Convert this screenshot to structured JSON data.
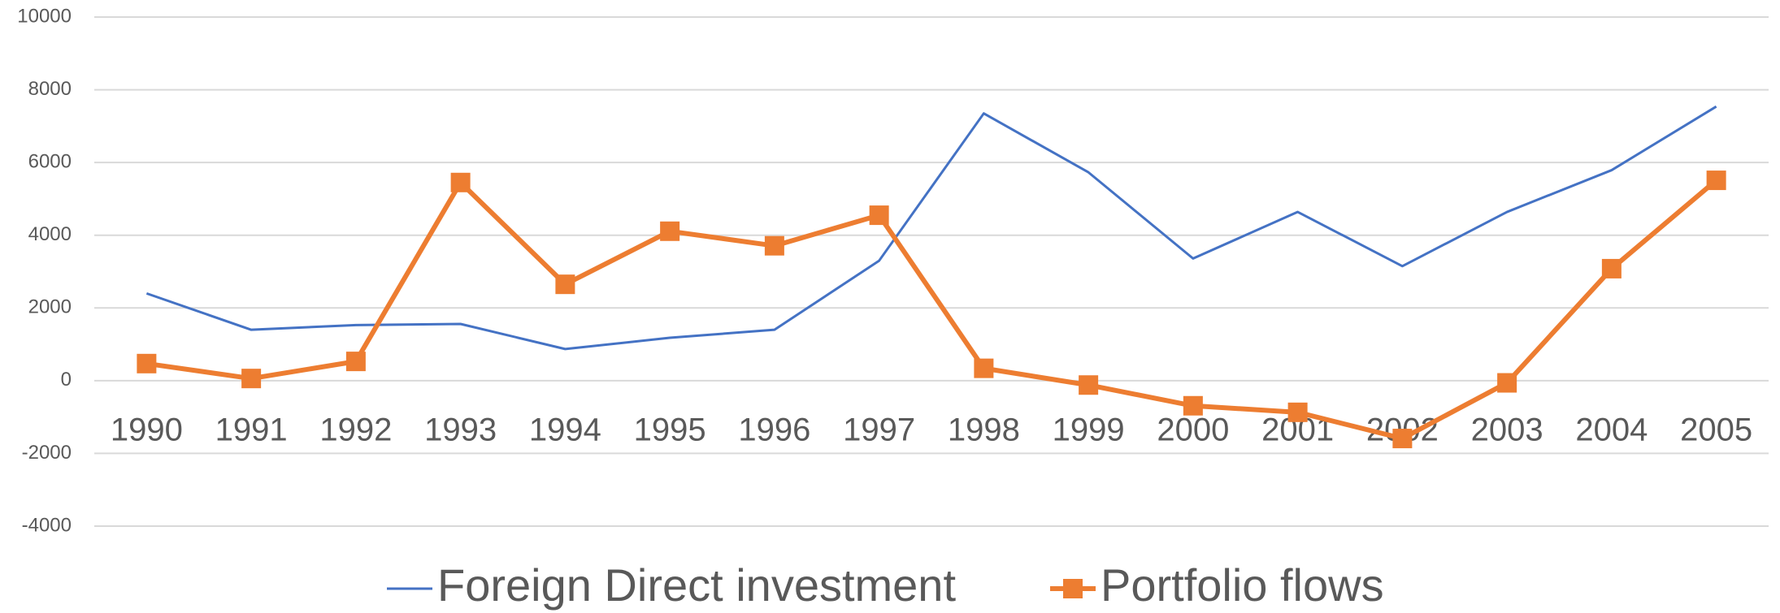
{
  "chart_data": {
    "type": "line",
    "categories": [
      "1990",
      "1991",
      "1992",
      "1993",
      "1994",
      "1995",
      "1996",
      "1997",
      "1998",
      "1999",
      "2000",
      "2001",
      "2002",
      "2003",
      "2004",
      "2005"
    ],
    "series": [
      {
        "name": "Foreign Direct investment",
        "color": "#4472c4",
        "marker": false,
        "values": [
          2400,
          1400,
          1530,
          1560,
          870,
          1180,
          1400,
          3300,
          7350,
          5730,
          3360,
          4640,
          3150,
          4640,
          5790,
          7540
        ]
      },
      {
        "name": "Portfolio flows",
        "color": "#ed7d31",
        "marker": true,
        "values": [
          470,
          60,
          530,
          5450,
          2650,
          4110,
          3710,
          4550,
          340,
          -120,
          -690,
          -870,
          -1590,
          -60,
          3080,
          5510
        ]
      }
    ],
    "ylim": [
      -4000,
      10000
    ],
    "yticks": [
      -4000,
      -2000,
      0,
      2000,
      4000,
      6000,
      8000,
      10000
    ],
    "grid": true,
    "legend": "bottom"
  }
}
